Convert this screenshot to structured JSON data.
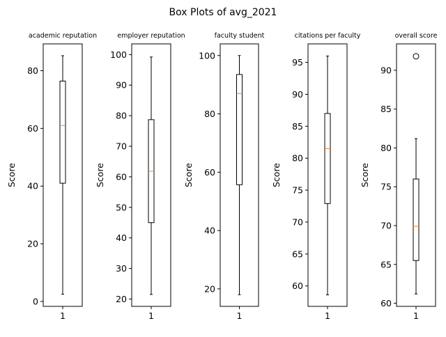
{
  "figure_title": "Box Plots of avg_2021",
  "chart_data": [
    {
      "type": "box",
      "title": "academic reputation",
      "ylabel": "Score",
      "categories": [
        "1"
      ],
      "ylim": [
        -1.7,
        89.3
      ],
      "yticks": [
        0,
        20,
        40,
        60,
        80
      ],
      "box": {
        "whisker_low": 2.5,
        "q1": 41.0,
        "median": 61.0,
        "q3": 76.4,
        "whisker_high": 85.2
      },
      "outliers": []
    },
    {
      "type": "box",
      "title": "employer reputation",
      "ylabel": "Score",
      "categories": [
        "1"
      ],
      "ylim": [
        17.6,
        103.5
      ],
      "yticks": [
        20,
        30,
        40,
        50,
        60,
        70,
        80,
        90,
        100
      ],
      "box": {
        "whisker_low": 21.5,
        "q1": 45.0,
        "median": 61.8,
        "q3": 78.7,
        "whisker_high": 99.2
      },
      "outliers": []
    },
    {
      "type": "box",
      "title": "faculty student",
      "ylabel": "Score",
      "categories": [
        "1"
      ],
      "ylim": [
        14.0,
        104.0
      ],
      "yticks": [
        20,
        40,
        60,
        80,
        100
      ],
      "box": {
        "whisker_low": 18.0,
        "q1": 55.7,
        "median": 87.0,
        "q3": 93.5,
        "whisker_high": 100.0
      },
      "outliers": []
    },
    {
      "type": "box",
      "title": "citations per faculty",
      "ylabel": "Score",
      "categories": [
        "1"
      ],
      "ylim": [
        56.8,
        97.9
      ],
      "yticks": [
        60,
        65,
        70,
        75,
        80,
        85,
        90,
        95
      ],
      "box": {
        "whisker_low": 58.6,
        "q1": 72.9,
        "median": 81.5,
        "q3": 87.0,
        "whisker_high": 96.0
      },
      "outliers": []
    },
    {
      "type": "box",
      "title": "overall score",
      "ylabel": "Score",
      "categories": [
        "1"
      ],
      "ylim": [
        59.6,
        93.4
      ],
      "yticks": [
        60,
        65,
        70,
        75,
        80,
        85,
        90
      ],
      "box": {
        "whisker_low": 61.2,
        "q1": 65.5,
        "median": 69.9,
        "q3": 76.0,
        "whisker_high": 81.2
      },
      "outliers": [
        91.8
      ]
    }
  ]
}
